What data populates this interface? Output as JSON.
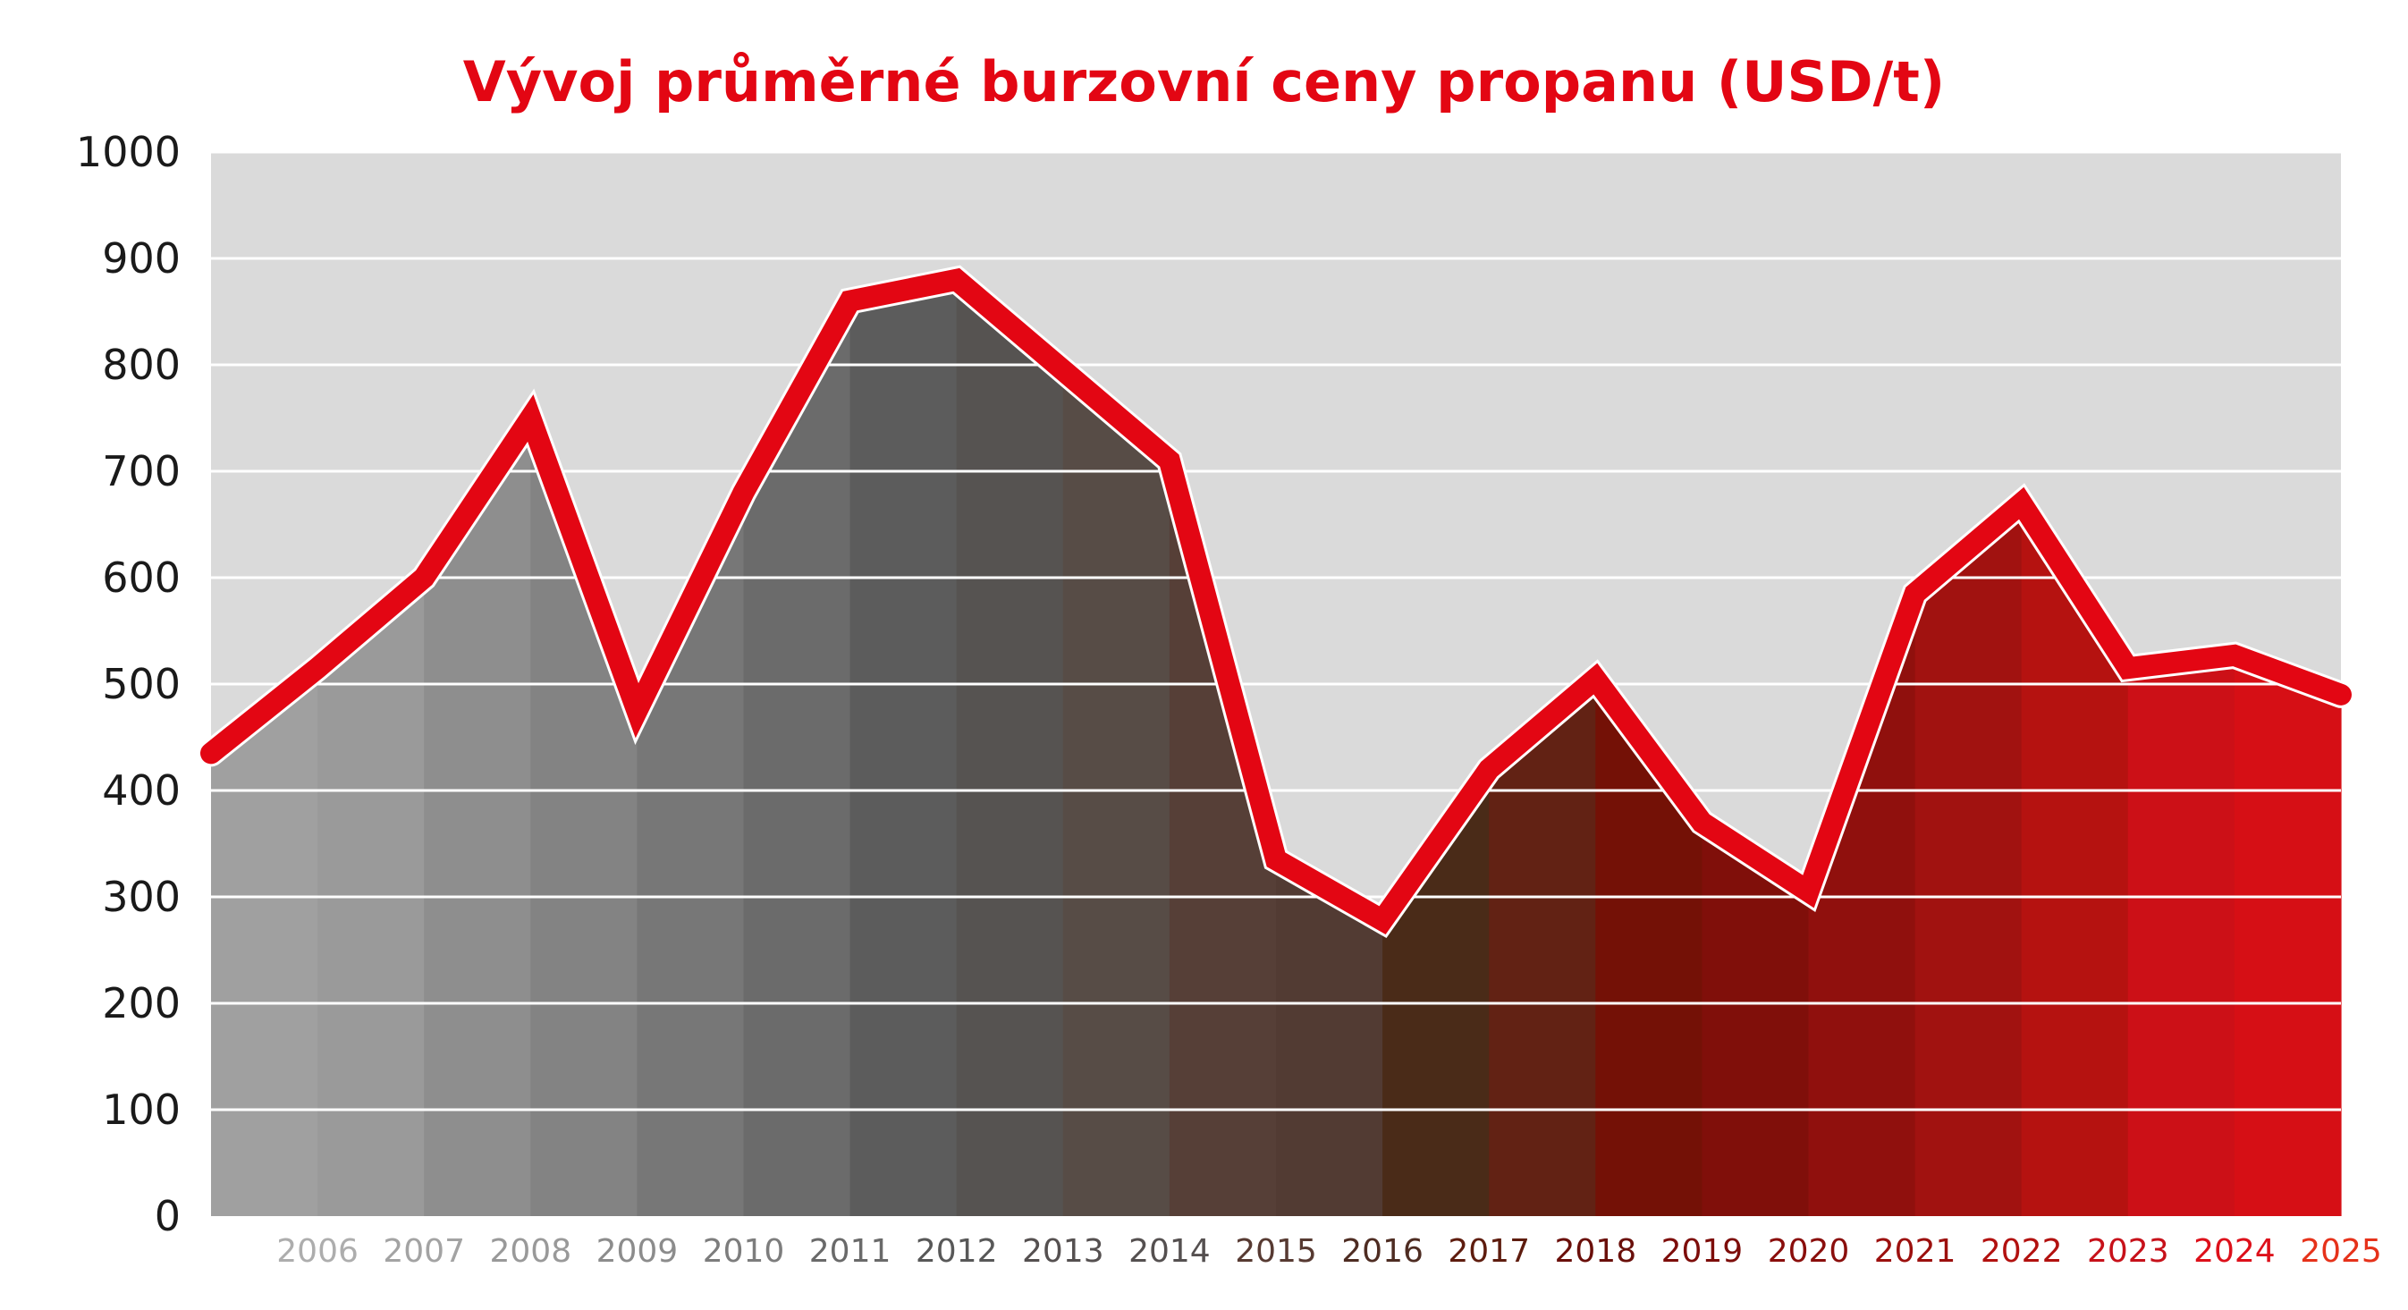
{
  "chart_data": {
    "type": "area",
    "title": "Vývoj průměrné burzovní ceny propanu (USD/t)",
    "xlabel": "",
    "ylabel": "",
    "ylim": [
      0,
      1000
    ],
    "yticks": [
      "0",
      "100",
      "200",
      "300",
      "400",
      "500",
      "600",
      "700",
      "800",
      "900",
      "1000"
    ],
    "grid": true,
    "categories": [
      "2006",
      "2007",
      "2008",
      "2009",
      "2010",
      "2011",
      "2012",
      "2013",
      "2014",
      "2015",
      "2016",
      "2017",
      "2018",
      "2019",
      "2020",
      "2021",
      "2022",
      "2023",
      "2024",
      "2025"
    ],
    "points": [
      {
        "x": "2005",
        "y": 435
      },
      {
        "x": "2006",
        "y": 515
      },
      {
        "x": "2007",
        "y": 600
      },
      {
        "x": "2008",
        "y": 750
      },
      {
        "x": "2009",
        "y": 475
      },
      {
        "x": "2010",
        "y": 680
      },
      {
        "x": "2011",
        "y": 860
      },
      {
        "x": "2012",
        "y": 880
      },
      {
        "x": "2013",
        "y": 795
      },
      {
        "x": "2014",
        "y": 710
      },
      {
        "x": "2015",
        "y": 335
      },
      {
        "x": "2016",
        "y": 278
      },
      {
        "x": "2017",
        "y": 420
      },
      {
        "x": "2018",
        "y": 505
      },
      {
        "x": "2019",
        "y": 370
      },
      {
        "x": "2020",
        "y": 305
      },
      {
        "x": "2021",
        "y": 585
      },
      {
        "x": "2022",
        "y": 670
      },
      {
        "x": "2023",
        "y": 515
      },
      {
        "x": "2024",
        "y": 527
      },
      {
        "x": "2025",
        "y": 490
      }
    ],
    "band_colors": [
      "#a0a0a0",
      "#9a9a9a",
      "#8e8e8e",
      "#838383",
      "#777777",
      "#6b6b6b",
      "#5c5c5c",
      "#565351",
      "#574c46",
      "#563f37",
      "#523b33",
      "#4a2b18",
      "#622214",
      "#741106",
      "#800f0a",
      "#90100d",
      "#a11210",
      "#b51210",
      "#cc1017",
      "#d60f15",
      "#e2321a"
    ],
    "tick_colors": [
      "#adadad",
      "#a3a3a3",
      "#999999",
      "#8c8c8c",
      "#7d7d7d",
      "#6a6a6a",
      "#585858",
      "#555050",
      "#555050",
      "#573a32",
      "#4e2c22",
      "#5e1c0e",
      "#6a0f0a",
      "#7d0d0a",
      "#8a0e0c",
      "#9c100e",
      "#b2110f",
      "#c7111a",
      "#dd101a",
      "#e6321a"
    ],
    "line_color": "#e30613",
    "plot_bg": "#dadada"
  }
}
